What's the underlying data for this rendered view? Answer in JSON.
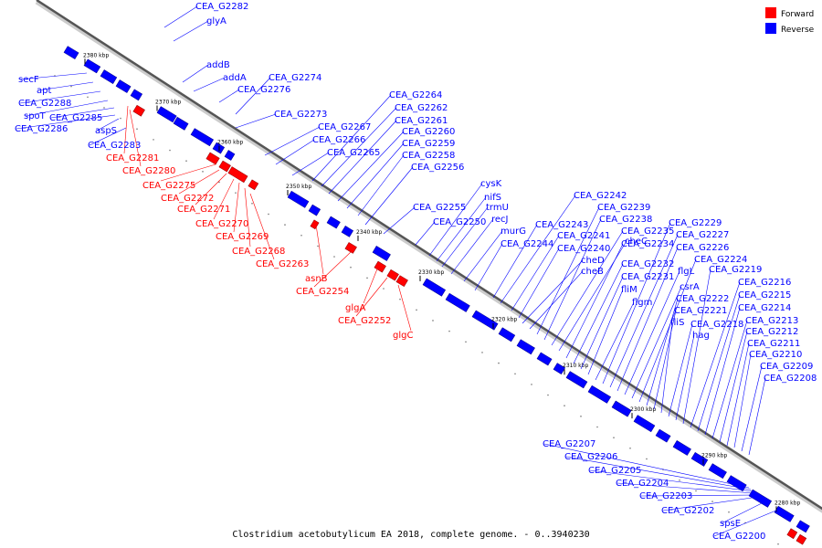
{
  "caption": "Clostridium acetobutylicum EA 2018, complete genome. - 0..3940230",
  "legend": [
    {
      "label": "Forward",
      "color": "#ff0000"
    },
    {
      "label": "Reverse",
      "color": "#0000ff"
    }
  ],
  "colors": {
    "forward": "#ff0000",
    "reverse": "#0000ff",
    "backbone": "#555555"
  },
  "scale_labels": [
    "2380 kbp",
    "2370 kbp",
    "2360 kbp",
    "2350 kbp",
    "2340 kbp",
    "2330 kbp",
    "2320 kbp",
    "2310 kbp",
    "2300 kbp",
    "2290 kbp",
    "2280 kbp"
  ],
  "reverse_labels": [
    "CEA_G2282",
    "glyA",
    "addB",
    "addA",
    "CEA_G2274",
    "CEA_G2276",
    "CEA_G2273",
    "secF",
    "apt",
    "CEA_G2288",
    "spoT",
    "CEA_G2285",
    "CEA_G2286",
    "aspS",
    "CEA_G2283",
    "CEA_G2267",
    "CEA_G2266",
    "CEA_G2265",
    "CEA_G2264",
    "CEA_G2262",
    "CEA_G2261",
    "CEA_G2260",
    "CEA_G2259",
    "CEA_G2258",
    "CEA_G2256",
    "CEA_G2255",
    "CEA_G2250",
    "cysK",
    "nifS",
    "trmU",
    "recJ",
    "murG",
    "CEA_G2244",
    "CEA_G2243",
    "CEA_G2242",
    "CEA_G2241",
    "CEA_G2240",
    "cheD",
    "cheB",
    "CEA_G2239",
    "CEA_G2238",
    "CEA_G2235",
    "cheC",
    "CEA_G2234",
    "CEA_G2232",
    "CEA_G2231",
    "fliM",
    "flgm",
    "CEA_G2229",
    "CEA_G2227",
    "CEA_G2226",
    "flgL",
    "csrA",
    "CEA_G2224",
    "CEA_G2222",
    "CEA_G2221",
    "fliS",
    "CEA_G2218",
    "hag",
    "CEA_G2219",
    "CEA_G2216",
    "CEA_G2215",
    "CEA_G2214",
    "CEA_G2213",
    "CEA_G2212",
    "CEA_G2211",
    "CEA_G2210",
    "CEA_G2209",
    "CEA_G2208",
    "CEA_G2207",
    "CEA_G2206",
    "CEA_G2205",
    "CEA_G2204",
    "CEA_G2203",
    "CEA_G2202",
    "spsE",
    "CEA_G2200"
  ],
  "forward_labels": [
    "CEA_G2281",
    "CEA_G2280",
    "CEA_G2275",
    "CEA_G2272",
    "CEA_G2271",
    "CEA_G2270",
    "CEA_G2269",
    "CEA_G2268",
    "CEA_G2263",
    "asnB",
    "CEA_G2254",
    "glgA",
    "CEA_G2252",
    "glgC"
  ]
}
